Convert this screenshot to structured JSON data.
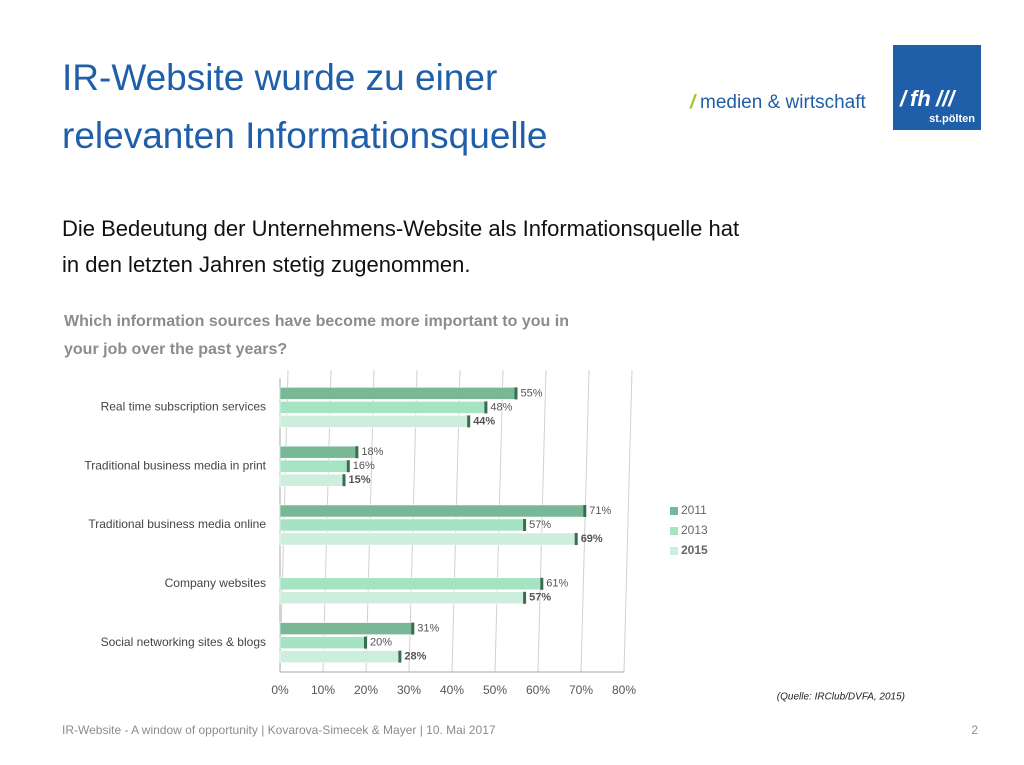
{
  "header": {
    "title": [
      "IR-Website wurde zu einer",
      "relevanten Informationsquelle"
    ],
    "logo_text": "medien & wirtschaft",
    "logo_badge": "fh",
    "logo_city": "st.pölten"
  },
  "subtitle": [
    "Die Bedeutung der Unternehmens-Website als Informationsquelle hat",
    "in den letzten Jahren stetig zugenommen."
  ],
  "chart_data": {
    "type": "bar",
    "orientation": "horizontal",
    "title": [
      "Which information sources have become more important to you in",
      "your job over the past years?"
    ],
    "categories": [
      "Real time subscription services",
      "Traditional business media in print",
      "Traditional business media online",
      "Company websites",
      "Social networking sites & blogs"
    ],
    "series": [
      {
        "name": "2011",
        "color": "#78b896",
        "values": [
          55,
          18,
          71,
          null,
          31
        ],
        "value_labels": [
          "55%",
          "18%",
          "71%",
          null,
          "31%"
        ]
      },
      {
        "name": "2013",
        "color": "#a6e3c3",
        "values": [
          48,
          16,
          57,
          61,
          20
        ],
        "value_labels": [
          "48%",
          "16%",
          "57%",
          "61%",
          "20%"
        ]
      },
      {
        "name": "2015",
        "color": "#cdeedd",
        "values": [
          44,
          15,
          69,
          57,
          28
        ],
        "value_labels": [
          "44%",
          "15%",
          "69%",
          "57%",
          "28%"
        ]
      }
    ],
    "xlim": [
      0,
      80
    ],
    "xticks": [
      {
        "value": 0,
        "label": "0%"
      },
      {
        "value": 10,
        "label": "10%"
      },
      {
        "value": 20,
        "label": "20%"
      },
      {
        "value": 30,
        "label": "30%"
      },
      {
        "value": 40,
        "label": "40%"
      },
      {
        "value": 50,
        "label": "50%"
      },
      {
        "value": 60,
        "label": "60%"
      },
      {
        "value": 70,
        "label": "70%"
      },
      {
        "value": 80,
        "label": "80%"
      }
    ],
    "grid": true,
    "legend": "right"
  },
  "source": "(Quelle: IRClub/DVFA, 2015)",
  "footer": {
    "text": "IR-Website - A window of opportunity | Kovarova-Simecek & Mayer | 10. Mai 2017",
    "page": "2"
  }
}
